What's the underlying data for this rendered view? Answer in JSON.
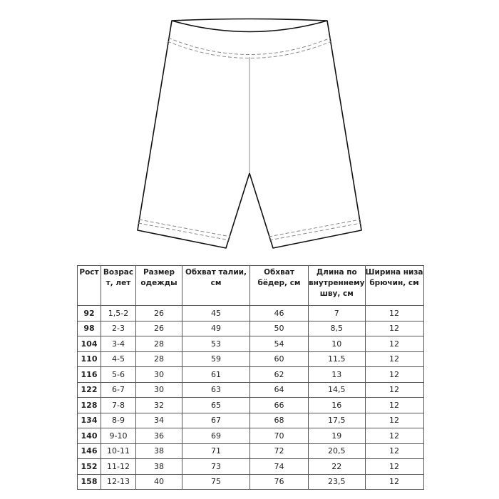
{
  "headers": [
    "Рост",
    "Возрас т, лет",
    "Размер одежды",
    "Обхват талии, см",
    "Обхват бёдер, см",
    "Длина по внутреннему шву, см",
    "Ширина низа брючин, см"
  ],
  "rows": [
    [
      "92",
      "1,5-2",
      "26",
      "45",
      "46",
      "7",
      "12"
    ],
    [
      "98",
      "2-3",
      "26",
      "49",
      "50",
      "8,5",
      "12"
    ],
    [
      "104",
      "3-4",
      "28",
      "53",
      "54",
      "10",
      "12"
    ],
    [
      "110",
      "4-5",
      "28",
      "59",
      "60",
      "11,5",
      "12"
    ],
    [
      "116",
      "5-6",
      "30",
      "61",
      "62",
      "13",
      "12"
    ],
    [
      "122",
      "6-7",
      "30",
      "63",
      "64",
      "14,5",
      "12"
    ],
    [
      "128",
      "7-8",
      "32",
      "65",
      "66",
      "16",
      "12"
    ],
    [
      "134",
      "8-9",
      "34",
      "67",
      "68",
      "17,5",
      "12"
    ],
    [
      "140",
      "9-10",
      "36",
      "69",
      "70",
      "19",
      "12"
    ],
    [
      "146",
      "10-11",
      "38",
      "71",
      "72",
      "20,5",
      "12"
    ],
    [
      "152",
      "11-12",
      "38",
      "73",
      "74",
      "22",
      "12"
    ],
    [
      "158",
      "12-13",
      "40",
      "75",
      "76",
      "23,5",
      "12"
    ]
  ]
}
